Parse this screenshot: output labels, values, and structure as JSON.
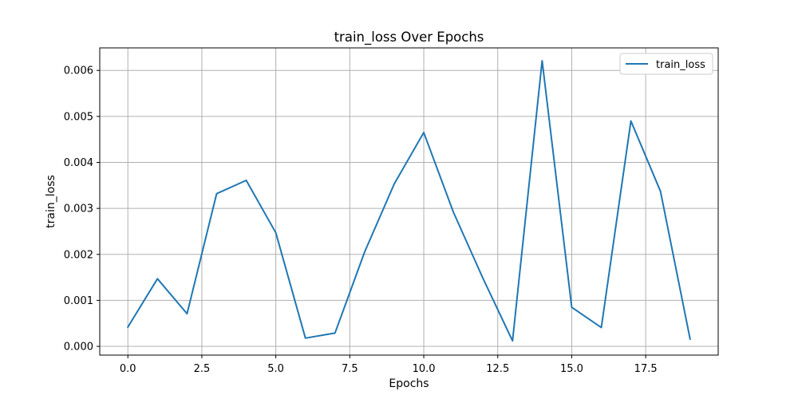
{
  "chart_data": {
    "type": "line",
    "title": "train_loss Over Epochs",
    "xlabel": "Epochs",
    "ylabel": "train_loss",
    "xlim": [
      -0.95,
      19.95
    ],
    "ylim": [
      -0.00019,
      0.00649
    ],
    "x_ticks": [
      0.0,
      2.5,
      5.0,
      7.5,
      10.0,
      12.5,
      15.0,
      17.5
    ],
    "x_tick_labels": [
      "0.0",
      "2.5",
      "5.0",
      "7.5",
      "10.0",
      "12.5",
      "15.0",
      "17.5"
    ],
    "y_ticks": [
      0.0,
      0.001,
      0.002,
      0.003,
      0.004,
      0.005,
      0.006
    ],
    "y_tick_labels": [
      "0.000",
      "0.001",
      "0.002",
      "0.003",
      "0.004",
      "0.005",
      "0.006"
    ],
    "grid": true,
    "legend_position": "upper right",
    "x": [
      0,
      1,
      2,
      3,
      4,
      5,
      6,
      7,
      8,
      9,
      10,
      11,
      12,
      13,
      14,
      15,
      16,
      17,
      18,
      19
    ],
    "series": [
      {
        "name": "train_loss",
        "color": "#1f77b4",
        "values": [
          0.00042,
          0.00147,
          0.00071,
          0.00332,
          0.00361,
          0.00247,
          0.00018,
          0.00029,
          0.00205,
          0.00353,
          0.00465,
          0.00292,
          0.00148,
          0.00012,
          0.00621,
          0.00085,
          0.00041,
          0.0049,
          0.00337,
          0.00016
        ]
      }
    ]
  }
}
